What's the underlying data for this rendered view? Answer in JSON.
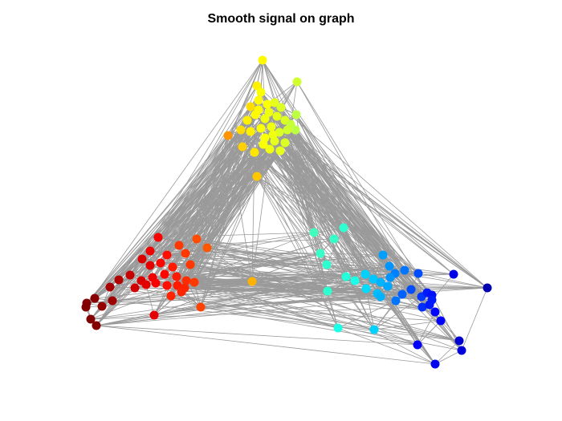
{
  "title": "Smooth signal on graph",
  "colors": {
    "edge": "#9a9a9a",
    "background": "#ffffff"
  }
}
